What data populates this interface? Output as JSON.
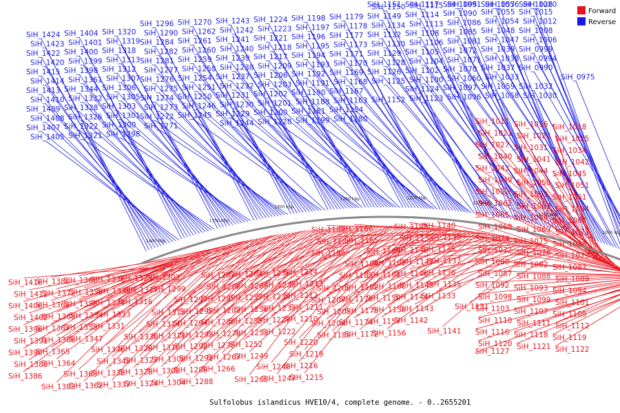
{
  "caption": "Sulfolobus islandicus HVE10/4, complete genome. - 0..2655201",
  "legend": {
    "forward": {
      "label": "Forward",
      "color": "#e8121c"
    },
    "reverse": {
      "label": "Reverse",
      "color": "#1a1ae6"
    }
  },
  "backbone_color": "#888888",
  "scale_ticks": [
    "1400 kbp",
    "1350 kbp",
    "1300 kbp",
    "1250 kbp",
    "1200 kbp",
    "1150 kbp",
    "1100 kbp",
    "1050 kbp",
    "1000 kbp"
  ],
  "top_labels": [
    "SiH_0975",
    "SiH_0990",
    "SiH_0994",
    "SiH_0999",
    "SiH_1006",
    "SiH_1008",
    "SiH_1012",
    "SiH_1015",
    "SiH_1020",
    "SiH_1026",
    "SiH_1030",
    "SiH_1032",
    "SiH_1033",
    "SiH_1037",
    "SiH_1038",
    "SiH_1039",
    "SiH_1047",
    "SiH_1048",
    "SiH_1054",
    "SiH_1055",
    "SiH_1056",
    "SiH_1057",
    "SiH_1058",
    "SiH_1059",
    "SiH_1060",
    "SiH_1070",
    "SiH_1071",
    "SiH_1072",
    "SiH_1081",
    "SiH_1085",
    "SiH_1086",
    "SiH_1090",
    "SiH_1091",
    "SiH_1095",
    "SiH_1096",
    "SiH_1097",
    "SiH_1100",
    "SiH_1102",
    "SiH_1104",
    "SiH_1105",
    "SiH_1106",
    "SiH_1108",
    "SiH_1113",
    "SiH_1114",
    "SiH_1115",
    "SiH_1117",
    "SiH_1123",
    "SiH_1124",
    "SiH_1125",
    "SiH_1126",
    "SiH_1128",
    "SiH_1129",
    "SiH_1130",
    "SiH_1132",
    "SiH_1134",
    "SiH_1149",
    "SiH_1150",
    "SiH_1151",
    "SiH_1152",
    "SiH_1154",
    "SiH_1163",
    "SiH_1167",
    "SiH_1168",
    "SiH_1169",
    "SiH_1170",
    "SiH_1171",
    "SiH_1173",
    "SiH_1177",
    "SiH_1178",
    "SiH_1179",
    "SiH_1180",
    "SiH_1181",
    "SiH_1188",
    "SiH_1190",
    "SiH_1191",
    "SiH_1192",
    "SiH_1193",
    "SiH_1194",
    "SiH_1195",
    "SiH_1196",
    "SiH_1197",
    "SiH_1198",
    "SiH_1199",
    "SiH_1200",
    "SiH_1201",
    "SiH_1202",
    "SiH_1203",
    "SiH_1206",
    "SiH_1209",
    "SiH_1217",
    "SiH_1218",
    "SiH_1221",
    "SiH_1223",
    "SiH_1224",
    "SiH_1228",
    "SiH_1229",
    "SiH_1230",
    "SiH_1231",
    "SiH_1232",
    "SiH_1237",
    "SiH_1238",
    "SiH_1239",
    "SiH_1240",
    "SiH_1241",
    "SiH_1242",
    "SiH_1243",
    "SiH_1244",
    "SiH_1245",
    "SiH_1246",
    "SiH_1250",
    "SiH_1251",
    "SiH_1254",
    "SiH_1258",
    "SiH_1259",
    "SiH_1260",
    "SiH_1261",
    "SiH_1262",
    "SiH_1270",
    "SiH_1271",
    "SiH_1272",
    "SiH_1273",
    "SiH_1274",
    "SiH_1275",
    "SiH_1276",
    "SiH_1277",
    "SiH_1281",
    "SiH_1282",
    "SiH_1284",
    "SiH_1290",
    "SiH_1296",
    "SiH_1298",
    "SiH_1300",
    "SiH_1301",
    "SiH_1303",
    "SiH_1305",
    "SiH_1306",
    "SiH_1307",
    "SiH_1312",
    "SiH_1313",
    "SiH_1318",
    "SiH_1319",
    "SiH_1320",
    "SiH_1321",
    "SiH_1322",
    "SiH_1326",
    "SiH_1328",
    "SiH_1332",
    "SiH_1344",
    "SiH_1361",
    "SiH_1398",
    "SiH_1399",
    "SiH_1400",
    "SiH_1401",
    "SiH_1404",
    "SiH_1405",
    "SiH_1407",
    "SiH_1408",
    "SiH_1409",
    "SiH_1410",
    "SiH_1413",
    "SiH_1414",
    "SiH_1415",
    "SiH_1420",
    "SiH_1422",
    "SiH_1423",
    "SiH_1424"
  ],
  "right_labels": [
    "SiH_1011",
    "SiH_1016",
    "SiH_1018",
    "SiH_1021",
    "SiH_1022",
    "SiH_1025",
    "SiH_1027",
    "SiH_1031",
    "SiH_1034",
    "SiH_1040",
    "SiH_1041",
    "SiH_1042",
    "SiH_1043",
    "SiH_1044",
    "SiH_1045",
    "SiH_1049",
    "SiH_1050",
    "SiH_1051",
    "SiH_1052",
    "SiH_1053",
    "SiH_1061",
    "SiH_1062",
    "SiH_1063",
    "SiH_1064",
    "SiH_1065",
    "SiH_1066",
    "SiH_1067",
    "SiH_1068",
    "SiH_1069",
    "SiH_1073",
    "SiH_1074",
    "SiH_1075",
    "SiH_1076",
    "SiH_1077",
    "SiH_1078",
    "SiH_1079",
    "SiH_1080",
    "SiH_1082",
    "SiH_1083",
    "SiH_1087",
    "SiH_1088",
    "SiH_1089",
    "SiH_1092",
    "SiH_1093",
    "SiH_1094",
    "SiH_1098",
    "SiH_1099",
    "SiH_1101",
    "SiH_1103",
    "SiH_1107",
    "SiH_1109",
    "SiH_1110",
    "SiH_1111",
    "SiH_1112",
    "SiH_1116",
    "SiH_1118",
    "SiH_1119",
    "SiH_1120",
    "SiH_1121",
    "SiH_1122",
    "SiH_1127"
  ],
  "bottom_labels": [
    "SiH_1131",
    "SiH_1133",
    "SiH_1135",
    "SiH_1136",
    "SiH_1137",
    "SiH_1138",
    "SiH_1139",
    "SiH_1140",
    "SiH_1141",
    "SiH_1142",
    "SiH_1143",
    "SiH_1144",
    "SiH_1145",
    "SiH_1146",
    "SiH_1147",
    "SiH_1148",
    "SiH_1153",
    "SiH_1155",
    "SiH_1156",
    "SiH_1157",
    "SiH_1158",
    "SiH_1159",
    "SiH_1160",
    "SiH_1161",
    "SiH_1162",
    "SiH_1164",
    "SiH_1165",
    "SiH_1166",
    "SiH_1172",
    "SiH_1174",
    "SiH_1175",
    "SiH_1176",
    "SiH_1182",
    "SiH_1183",
    "SiH_1184",
    "SiH_1185",
    "SiH_1186",
    "SiH_1187",
    "SiH_1189",
    "SiH_1204",
    "SiH_1205",
    "SiH_1207",
    "SiH_1208",
    "SiH_1210",
    "SiH_1211",
    "SiH_1212",
    "SiH_1213",
    "SiH_1214",
    "SiH_1215",
    "SiH_1216",
    "SiH_1219",
    "SiH_1220",
    "SiH_1222",
    "SiH_1227",
    "SiH_1233",
    "SiH_1234",
    "SiH_1235",
    "SiH_1236",
    "SiH_1247",
    "SiH_1248",
    "SiH_1249",
    "SiH_1252",
    "SiH_1253",
    "SiH_1255",
    "SiH_1256",
    "SiH_1257",
    "SiH_1263",
    "SiH_1264",
    "SiH_1265",
    "SiH_1266",
    "SiH_1267",
    "SiH_1278",
    "SiH_1279",
    "SiH_1280",
    "SiH_1283",
    "SiH_1285",
    "SiH_1286",
    "SiH_1287",
    "SiH_1288",
    "SiH_1289",
    "SiH_1291",
    "SiH_1292",
    "SiH_1293",
    "SiH_1294",
    "SiH_1295",
    "SiH_1297",
    "SiH_1299",
    "SiH_1302",
    "SiH_1304",
    "SiH_1308",
    "SiH_1309",
    "SiH_1310",
    "SiH_1311",
    "SiH_1314",
    "SiH_1315",
    "SiH_1316",
    "SiH_1317",
    "SiH_1323",
    "SiH_1324",
    "SiH_1325",
    "SiH_1327",
    "SiH_1329",
    "SiH_1330",
    "SiH_1331",
    "SiH_1333",
    "SiH_1334",
    "SiH_1335",
    "SiH_1336",
    "SiH_1337",
    "SiH_1338",
    "SiH_1345",
    "SiH_1346",
    "SiH_1347",
    "SiH_1353",
    "SiH_1354",
    "SiH_1358",
    "SiH_1359",
    "SiH_1360",
    "SiH_1362",
    "SiH_1363",
    "SiH_1364",
    "SiH_1365",
    "SiH_1366",
    "SiH_1367",
    "SiH_1368",
    "SiH_1369",
    "SiH_1372",
    "SiH_1380",
    "SiH_1383",
    "SiH_1386",
    "SiH_1388",
    "SiH_1390",
    "SiH_1391",
    "SiH_1396",
    "SiH_1402",
    "SiH_1406",
    "SiH_1412",
    "SiH_1416"
  ]
}
